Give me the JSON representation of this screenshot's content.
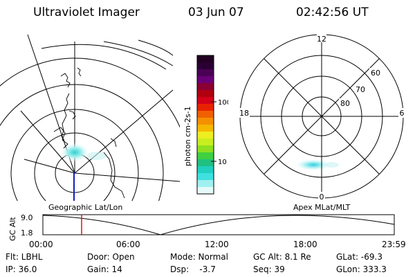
{
  "header": {
    "instrument": "Ultraviolet Imager",
    "date": "03 Jun 07",
    "time": "02:42:56 UT"
  },
  "colorbar": {
    "label": "photon cm-2s-1",
    "ticks": [
      "100",
      "10"
    ],
    "colors": [
      "#220022",
      "#2a0033",
      "#4a0055",
      "#6a0077",
      "#8a0033",
      "#b00010",
      "#d4001a",
      "#e82200",
      "#f06000",
      "#f59000",
      "#f5b800",
      "#eeee20",
      "#c8ee20",
      "#8ee020",
      "#40d040",
      "#20c080",
      "#20d0c0",
      "#40e0e0",
      "#a0f0f0",
      "#e6fafa"
    ]
  },
  "left_panel": {
    "caption": "Geographic Lat/Lon"
  },
  "right_panel": {
    "caption": "Apex MLat/MLT",
    "mlt_labels": {
      "top": "12",
      "left": "18",
      "right": "6",
      "bottom": "0"
    },
    "lat_labels": [
      "60",
      "70",
      "80"
    ]
  },
  "timeline": {
    "ylabel": "GC Alt",
    "yticks": [
      "9.0",
      "1.8"
    ],
    "xticks": [
      "00:00",
      "06:00",
      "12:00",
      "18:00",
      "23:59"
    ]
  },
  "status": {
    "flt": "Flt: LBHL",
    "ip": "IP: 36.0",
    "door": "Door: Open",
    "gain": "Gain: 14",
    "mode": "Mode: Normal",
    "dsp": "Dsp:    -3.7",
    "gcalt": "GC Alt: 8.1 Re",
    "seq": "Seq: 39",
    "glat": "GLat: -69.3",
    "glon": "GLon: 333.3"
  }
}
